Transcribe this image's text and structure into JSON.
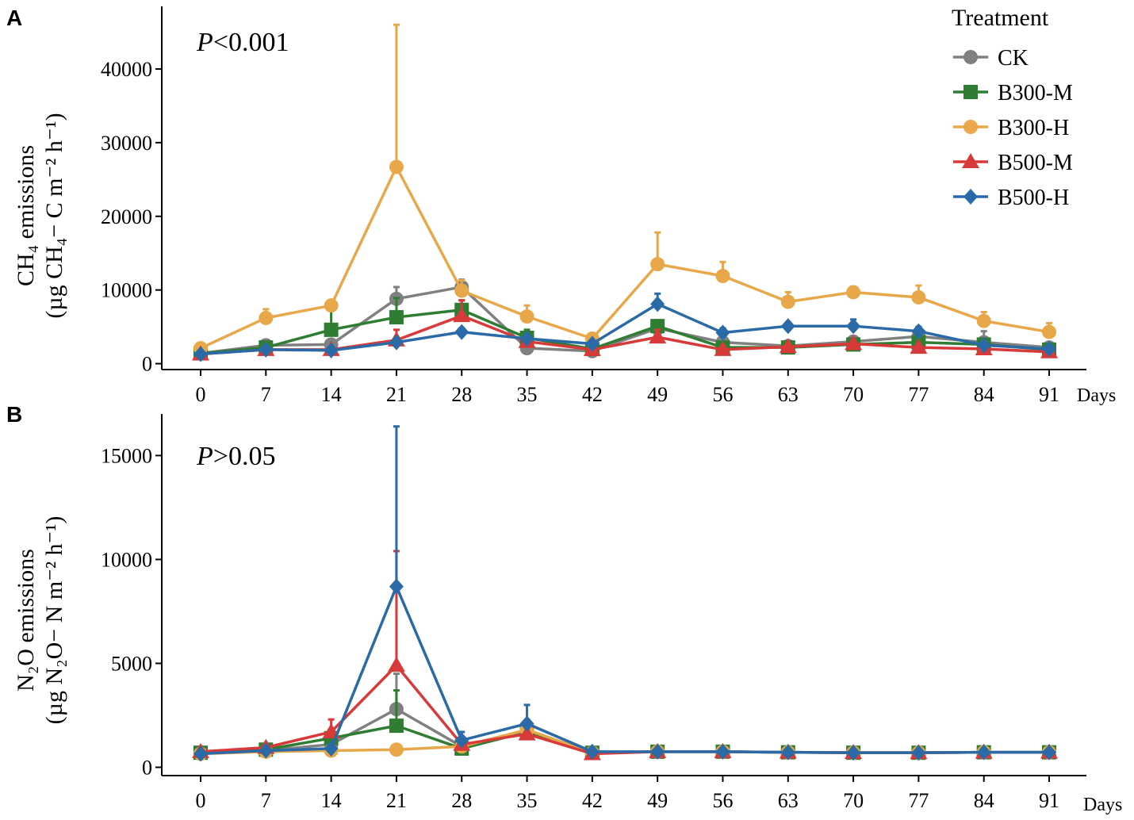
{
  "figure": {
    "treatment_title": "Treatment",
    "legend": [
      {
        "name": "CK",
        "color": "#808080",
        "marker": "circle"
      },
      {
        "name": "B300-M",
        "color": "#2e7d32",
        "marker": "square"
      },
      {
        "name": "B300-H",
        "color": "#e8a84a",
        "marker": "circle"
      },
      {
        "name": "B500-M",
        "color": "#d83a3a",
        "marker": "triangle"
      },
      {
        "name": "B500-H",
        "color": "#2a6aa6",
        "marker": "diamond"
      }
    ]
  },
  "chart_data": [
    {
      "type": "line",
      "panel_label": "A",
      "annotation_italic": "P",
      "annotation_rest": "<0.001",
      "ylabel_line1": "CH₄ emissions",
      "ylabel_line2": "(µg CH₄− C m⁻² h⁻¹)",
      "xlabel": "Days",
      "x": [
        0,
        7,
        14,
        21,
        28,
        35,
        42,
        49,
        56,
        63,
        70,
        77,
        84,
        91
      ],
      "yticks": [
        0,
        10000,
        20000,
        30000,
        40000
      ],
      "ylim": [
        -800,
        48500
      ],
      "series": [
        {
          "name": "CK",
          "values": [
            1400,
            2500,
            2600,
            8800,
            10400,
            2100,
            1700,
            4800,
            2900,
            2400,
            3000,
            3700,
            2900,
            2200
          ],
          "errors": [
            200,
            300,
            400,
            1600,
            1000,
            300,
            200,
            600,
            400,
            300,
            400,
            700,
            1500,
            300
          ]
        },
        {
          "name": "B300-M",
          "values": [
            1400,
            2200,
            4600,
            6300,
            7300,
            3500,
            2000,
            5100,
            2200,
            2200,
            2600,
            2900,
            2600,
            1900
          ],
          "errors": [
            200,
            300,
            3300,
            2600,
            1300,
            1100,
            300,
            800,
            300,
            300,
            400,
            400,
            400,
            300
          ]
        },
        {
          "name": "B300-H",
          "values": [
            2100,
            6200,
            7900,
            26700,
            9900,
            6400,
            3400,
            13500,
            11900,
            8400,
            9700,
            9000,
            5800,
            4300
          ],
          "errors": [
            300,
            1200,
            400,
            19300,
            1400,
            1500,
            300,
            4300,
            1900,
            1300,
            500,
            1600,
            1200,
            1200
          ]
        },
        {
          "name": "B500-M",
          "values": [
            1300,
            1900,
            1900,
            3200,
            6500,
            3000,
            1900,
            3600,
            1900,
            2300,
            2700,
            2200,
            2000,
            1600
          ],
          "errors": [
            200,
            200,
            200,
            1400,
            2100,
            400,
            200,
            1000,
            300,
            300,
            400,
            300,
            300,
            200
          ]
        },
        {
          "name": "B500-H",
          "values": [
            1300,
            1900,
            1800,
            2900,
            4300,
            3400,
            2700,
            8100,
            4200,
            5100,
            5100,
            4400,
            2500,
            2000
          ],
          "errors": [
            200,
            200,
            200,
            300,
            400,
            500,
            300,
            1400,
            600,
            500,
            900,
            600,
            400,
            300
          ]
        }
      ]
    },
    {
      "type": "line",
      "panel_label": "B",
      "annotation_italic": "P",
      "annotation_rest": ">0.05",
      "ylabel_line1": "N₂O emissions",
      "ylabel_line2": "(µg N₂O− N m⁻² h⁻¹)",
      "xlabel": "Days",
      "x": [
        0,
        7,
        14,
        21,
        28,
        35,
        42,
        49,
        56,
        63,
        70,
        77,
        84,
        91
      ],
      "yticks": [
        0,
        5000,
        10000,
        15000
      ],
      "ylim": [
        -400,
        17000
      ],
      "series": [
        {
          "name": "CK",
          "values": [
            700,
            800,
            1100,
            2800,
            1000,
            1800,
            700,
            750,
            750,
            720,
            700,
            700,
            720,
            720
          ],
          "errors": [
            80,
            100,
            300,
            1700,
            200,
            400,
            80,
            80,
            80,
            80,
            80,
            80,
            80,
            80
          ]
        },
        {
          "name": "B300-M",
          "values": [
            700,
            850,
            1400,
            2000,
            900,
            1700,
            700,
            750,
            750,
            720,
            700,
            700,
            720,
            720
          ],
          "errors": [
            80,
            100,
            400,
            1700,
            150,
            400,
            80,
            80,
            80,
            80,
            80,
            80,
            80,
            80
          ]
        },
        {
          "name": "B300-H",
          "values": [
            650,
            750,
            800,
            850,
            1000,
            1800,
            700,
            750,
            750,
            720,
            700,
            700,
            720,
            720
          ],
          "errors": [
            60,
            80,
            80,
            80,
            120,
            500,
            80,
            80,
            80,
            80,
            80,
            80,
            80,
            80
          ]
        },
        {
          "name": "B500-M",
          "values": [
            750,
            950,
            1700,
            4900,
            1100,
            1600,
            650,
            750,
            750,
            720,
            700,
            700,
            720,
            720
          ],
          "errors": [
            80,
            120,
            600,
            5500,
            200,
            300,
            80,
            80,
            80,
            80,
            80,
            80,
            80,
            80
          ]
        },
        {
          "name": "B500-H",
          "values": [
            650,
            800,
            900,
            8700,
            1300,
            2100,
            750,
            750,
            750,
            720,
            700,
            700,
            720,
            720
          ],
          "errors": [
            60,
            100,
            200,
            7700,
            400,
            900,
            80,
            80,
            80,
            80,
            80,
            80,
            80,
            80
          ]
        }
      ]
    }
  ]
}
